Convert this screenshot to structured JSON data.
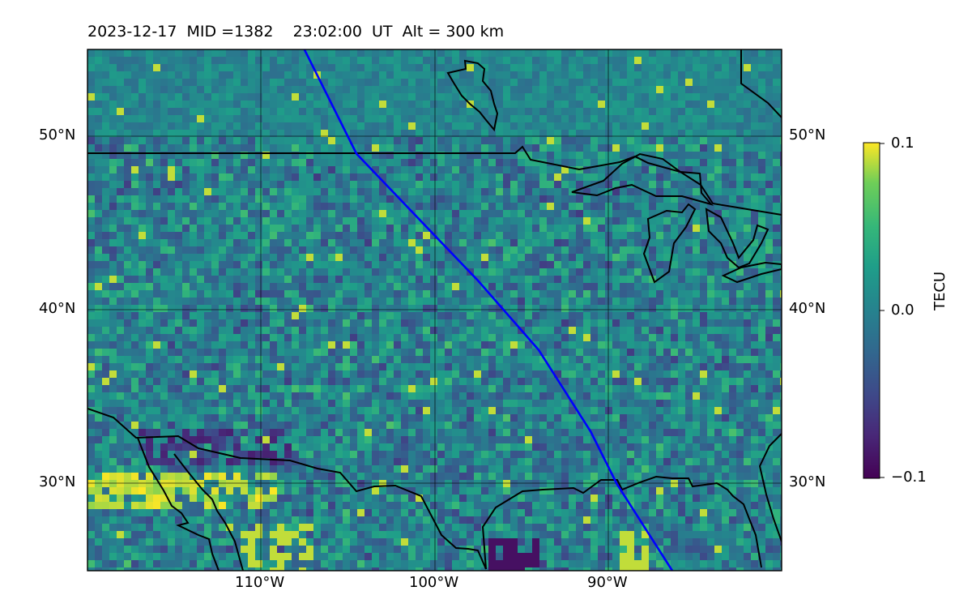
{
  "title": "2023-12-17  MID =1382    23:02:00  UT  Alt = 300 km",
  "map": {
    "region": "Continental United States and northern Mexico",
    "extent": {
      "lon": [
        -120,
        -80
      ],
      "lat": [
        25,
        55
      ]
    },
    "projection": "Plate Carree",
    "gridlines": true,
    "lat_labels": [
      "50°N",
      "40°N",
      "30°N"
    ],
    "lat_values": [
      50,
      40,
      30
    ],
    "lon_labels": [
      "110°W",
      "100°W",
      "90°W"
    ],
    "lon_values": [
      -110,
      -100,
      -90
    ],
    "features": [
      "coastlines",
      "national borders",
      "Great Lakes"
    ],
    "track": {
      "color": "#0000ff",
      "description": "satellite ground track",
      "points_lonlat": [
        [
          -107.5,
          55
        ],
        [
          -104.5,
          49
        ],
        [
          -100,
          44.3
        ],
        [
          -97.5,
          41.7
        ],
        [
          -94,
          37.7
        ],
        [
          -91,
          33
        ],
        [
          -89.5,
          30
        ],
        [
          -86.3,
          25
        ]
      ]
    }
  },
  "colorbar": {
    "label": "TECU",
    "ticks": [
      "0.1",
      "0.0",
      "−0.1"
    ],
    "range": [
      -0.1,
      0.1
    ],
    "colormap": "viridis"
  }
}
